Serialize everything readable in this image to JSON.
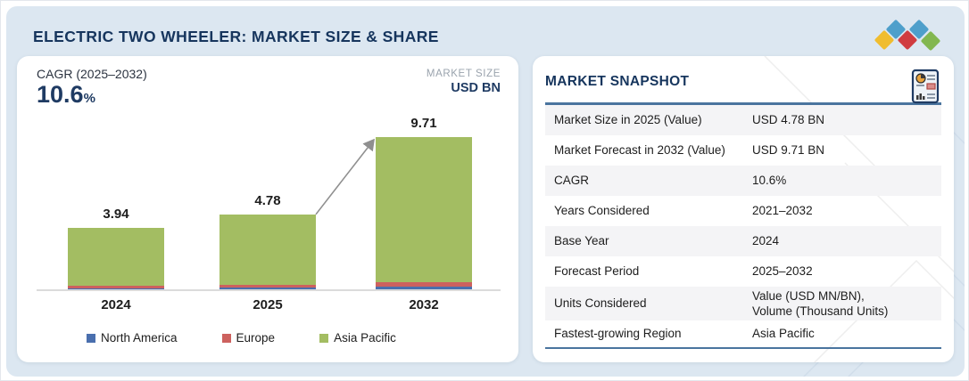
{
  "page": {
    "title": "ELECTRIC TWO WHEELER: MARKET SIZE & SHARE"
  },
  "logo": {
    "colors": [
      "#f0bd2f",
      "#4e9fcb",
      "#d03c40",
      "#4e9fcb",
      "#82b750"
    ]
  },
  "chart_card": {
    "cagr_label": "CAGR (2025–2032)",
    "cagr_value": "10.6",
    "cagr_unit": "%",
    "market_size_label": "MARKET SIZE",
    "market_size_unit": "USD BN"
  },
  "chart_data": {
    "type": "stacked-bar",
    "title": "Electric Two Wheeler market size by year",
    "categories": [
      "2024",
      "2025",
      "2032"
    ],
    "totals": [
      3.94,
      4.78,
      9.71
    ],
    "total_labels": [
      "3.94",
      "4.78",
      "9.71"
    ],
    "series": [
      {
        "name": "North America",
        "color": "#4a6fae",
        "values": [
          0.08,
          0.09,
          0.19
        ]
      },
      {
        "name": "Europe",
        "color": "#cd615e",
        "values": [
          0.16,
          0.18,
          0.28
        ]
      },
      {
        "name": "Asia Pacific",
        "color": "#a3bd62",
        "values": [
          3.7,
          4.51,
          9.24
        ]
      }
    ],
    "units": "USD BN",
    "ylim": [
      0,
      10
    ],
    "grid": false,
    "legend_position": "bottom",
    "annotation_arrow": {
      "from_category": "2025",
      "to_category": "2032"
    }
  },
  "snapshot": {
    "heading": "MARKET SNAPSHOT",
    "icon": "report-icon",
    "rows": [
      {
        "label": "Market Size in 2025 (Value)",
        "value": "USD 4.78 BN"
      },
      {
        "label": "Market Forecast in 2032 (Value)",
        "value": "USD 9.71 BN"
      },
      {
        "label": "CAGR",
        "value": "10.6%"
      },
      {
        "label": "Years Considered",
        "value": "2021–2032"
      },
      {
        "label": "Base Year",
        "value": "2024"
      },
      {
        "label": "Forecast Period",
        "value": "2025–2032"
      },
      {
        "label": "Units Considered",
        "value": "Value (USD MN/BN),\nVolume (Thousand Units)"
      },
      {
        "label": "Fastest-growing Region",
        "value": "Asia Pacific"
      }
    ]
  }
}
